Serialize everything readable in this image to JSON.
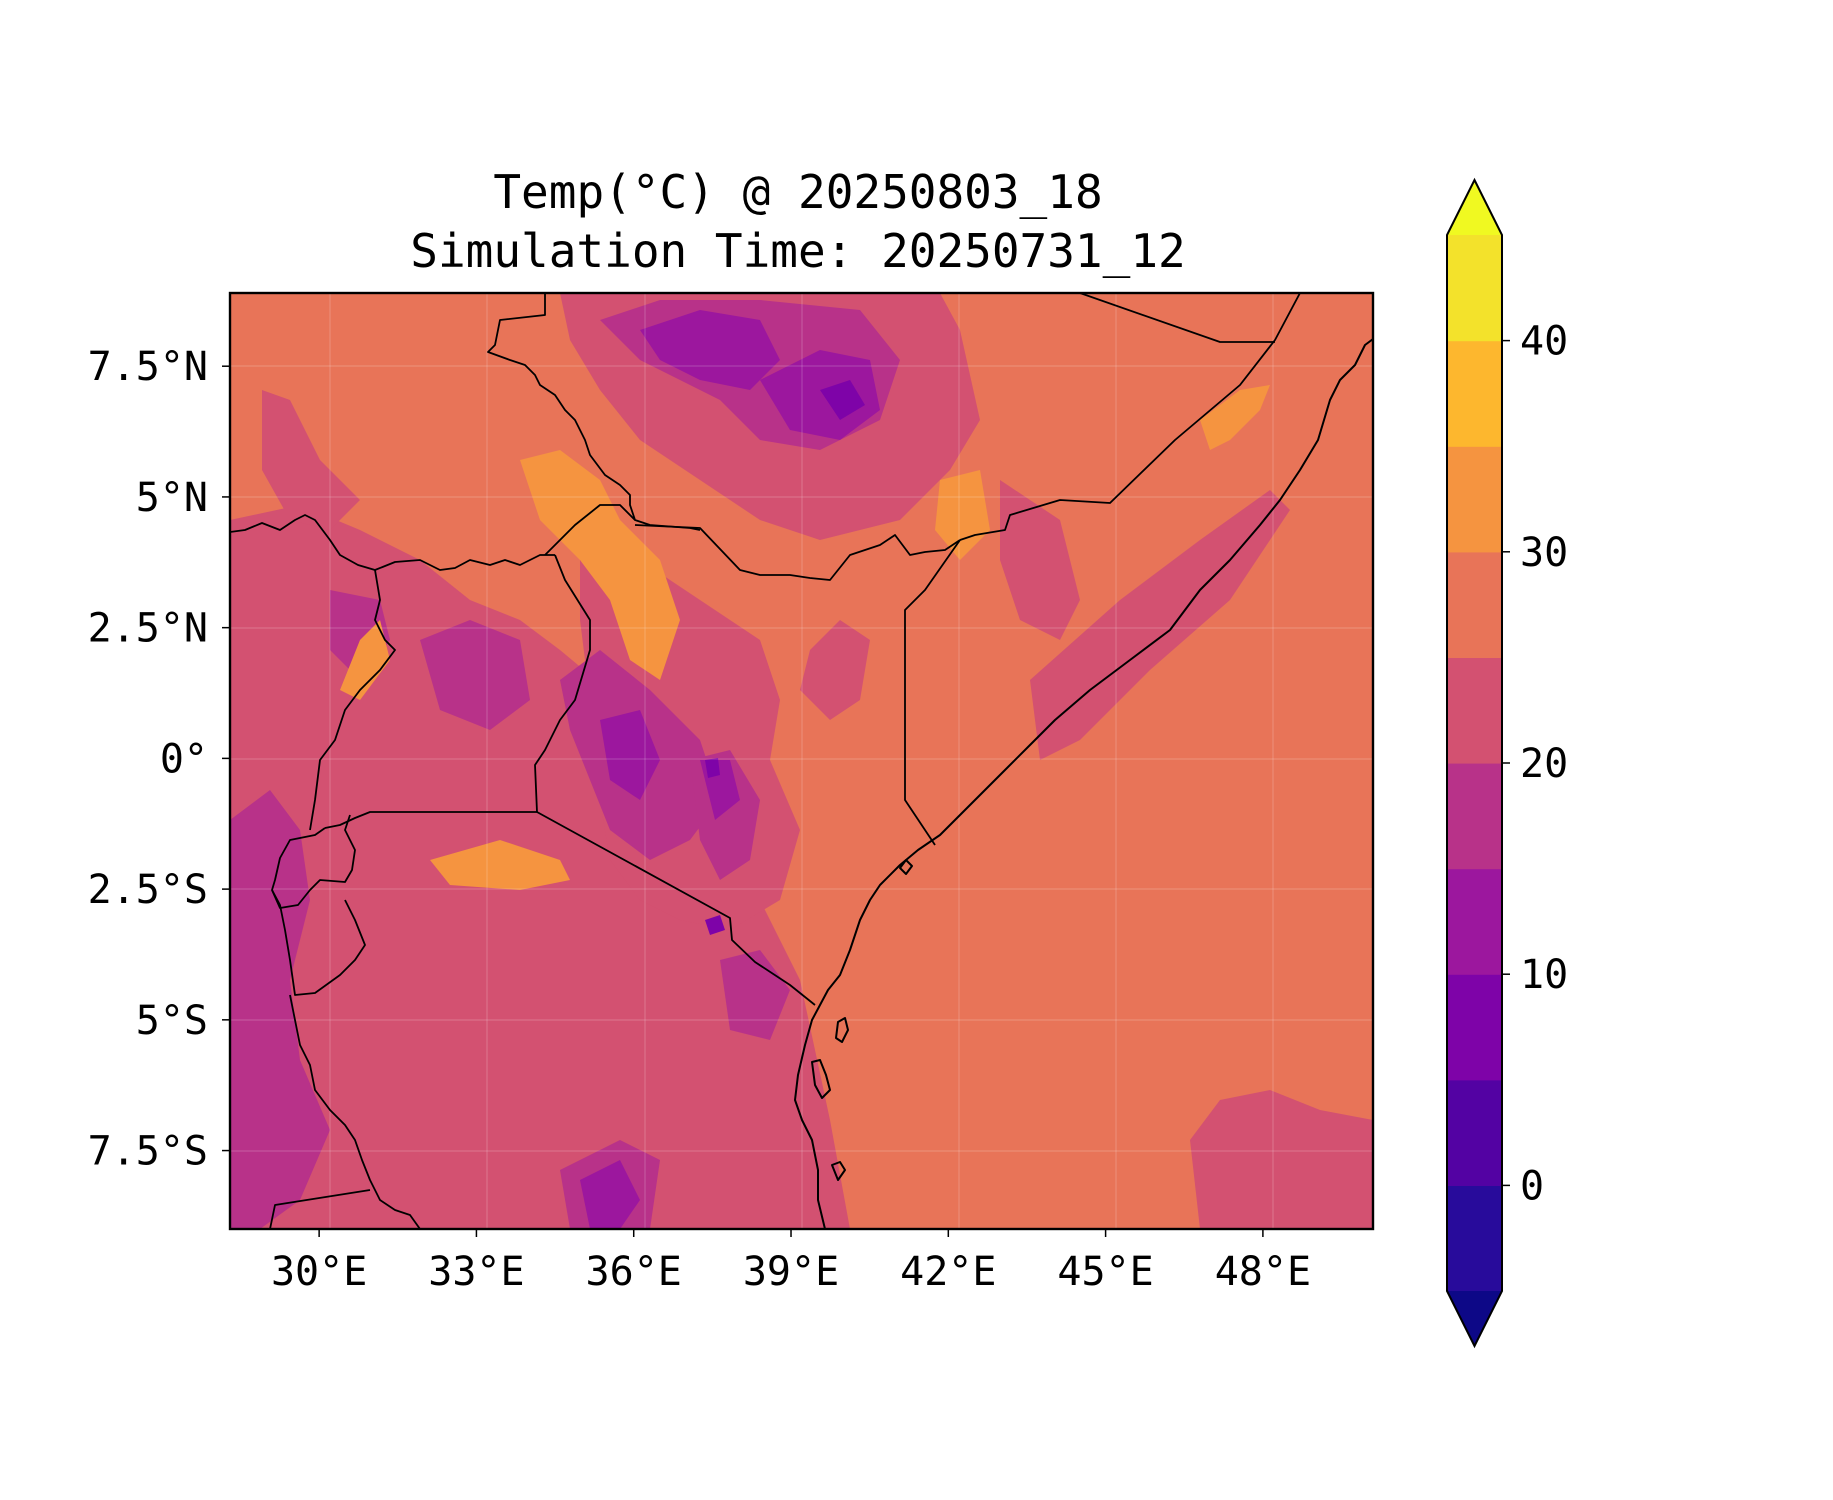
{
  "title": {
    "line1": "Temp(°C) @ 20250803_18",
    "line2": "Simulation Time: 20250731_12"
  },
  "map": {
    "extent": {
      "lon_min": 28.3,
      "lon_max": 50.1,
      "lat_min": -9.0,
      "lat_max": 8.9
    },
    "x_ticks": [
      {
        "lon": 30,
        "label": "30°E"
      },
      {
        "lon": 33,
        "label": "33°E"
      },
      {
        "lon": 36,
        "label": "36°E"
      },
      {
        "lon": 39,
        "label": "39°E"
      },
      {
        "lon": 42,
        "label": "42°E"
      },
      {
        "lon": 45,
        "label": "45°E"
      },
      {
        "lon": 48,
        "label": "48°E"
      }
    ],
    "y_ticks": [
      {
        "lat": 7.5,
        "label": "7.5°N"
      },
      {
        "lat": 5,
        "label": "5°N"
      },
      {
        "lat": 2.5,
        "label": "2.5°N"
      },
      {
        "lat": 0,
        "label": "0°"
      },
      {
        "lat": -2.5,
        "label": "2.5°S"
      },
      {
        "lat": -5,
        "label": "5°S"
      },
      {
        "lat": -7.5,
        "label": "7.5°S"
      }
    ],
    "background_color": "#e87458"
  },
  "colorbar": {
    "min": -5,
    "max": 45,
    "extend": "both",
    "ticks": [
      {
        "value": 0,
        "label": "0"
      },
      {
        "value": 10,
        "label": "10"
      },
      {
        "value": 20,
        "label": "20"
      },
      {
        "value": 30,
        "label": "30"
      },
      {
        "value": 40,
        "label": "40"
      }
    ],
    "levels": [
      {
        "from": -5,
        "to": 0,
        "color": "#280b9b"
      },
      {
        "from": 0,
        "to": 5,
        "color": "#5302a3"
      },
      {
        "from": 5,
        "to": 10,
        "color": "#7e03a8"
      },
      {
        "from": 10,
        "to": 15,
        "color": "#9c179e"
      },
      {
        "from": 15,
        "to": 20,
        "color": "#b83289"
      },
      {
        "from": 20,
        "to": 25,
        "color": "#d35171"
      },
      {
        "from": 25,
        "to": 30,
        "color": "#e87458"
      },
      {
        "from": 30,
        "to": 35,
        "color": "#f59440"
      },
      {
        "from": 35,
        "to": 40,
        "color": "#fdb72e"
      },
      {
        "from": 40,
        "to": 45,
        "color": "#f3e22b"
      }
    ],
    "under_color": "#0d0887",
    "over_color": "#f0f921"
  }
}
